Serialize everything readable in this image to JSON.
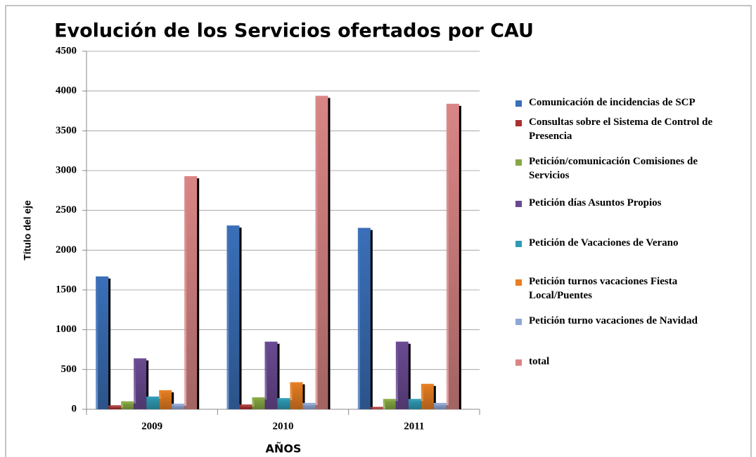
{
  "chart_data": {
    "type": "bar",
    "title": "Evolución de los Servicios ofertados por CAU",
    "x_label": "AÑOS",
    "y_label": "Título del eje",
    "categories": [
      "2009",
      "2010",
      "2011"
    ],
    "series": [
      {
        "name": "Comunicación de incidencias de SCP",
        "color": "#3a6fb8",
        "values": [
          1670,
          2310,
          2280
        ]
      },
      {
        "name": "Consultas sobre el Sistema de Control de Presencia",
        "color": "#a83232",
        "values": [
          50,
          60,
          30
        ]
      },
      {
        "name": "Petición/comunicación Comisiones de Servicios",
        "color": "#86a843",
        "values": [
          100,
          150,
          130
        ]
      },
      {
        "name": "Petición días Asuntos Propios",
        "color": "#6a4a92",
        "values": [
          640,
          850,
          850
        ]
      },
      {
        "name": "Petición de Vacaciones de Verano",
        "color": "#2f9bb5",
        "values": [
          160,
          140,
          130
        ]
      },
      {
        "name": "Petición turnos vacaciones Fiesta Local/Puentes",
        "color": "#e67e22",
        "values": [
          240,
          340,
          320
        ]
      },
      {
        "name": "Petición turno vacaciones de Navidad",
        "color": "#8ea7d4",
        "values": [
          70,
          80,
          80
        ]
      },
      {
        "name": "total",
        "color": "#d98585",
        "values": [
          2930,
          3940,
          3840
        ]
      }
    ],
    "ylim": [
      0,
      4500
    ],
    "yticks": [
      0,
      500,
      1000,
      1500,
      2000,
      2500,
      3000,
      3500,
      4000,
      4500
    ],
    "grid": true,
    "legend": "right"
  }
}
